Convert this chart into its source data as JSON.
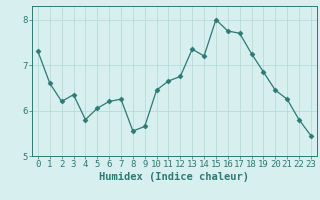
{
  "x": [
    0,
    1,
    2,
    3,
    4,
    5,
    6,
    7,
    8,
    9,
    10,
    11,
    12,
    13,
    14,
    15,
    16,
    17,
    18,
    19,
    20,
    21,
    22,
    23
  ],
  "y": [
    7.3,
    6.6,
    6.2,
    6.35,
    5.8,
    6.05,
    6.2,
    6.25,
    5.55,
    5.65,
    6.45,
    6.65,
    6.75,
    7.35,
    7.2,
    8.0,
    7.75,
    7.7,
    7.25,
    6.85,
    6.45,
    6.25,
    5.8,
    5.45
  ],
  "line_color": "#2d7a72",
  "marker": "D",
  "marker_size": 2.5,
  "bg_color": "#d8efef",
  "grid_color": "#b0d8d8",
  "xlabel": "Humidex (Indice chaleur)",
  "ylim": [
    5,
    8.3
  ],
  "yticks": [
    5,
    6,
    7,
    8
  ],
  "xtick_labels": [
    "0",
    "1",
    "2",
    "3",
    "4",
    "5",
    "6",
    "7",
    "8",
    "9",
    "10",
    "11",
    "12",
    "13",
    "14",
    "15",
    "16",
    "17",
    "18",
    "19",
    "20",
    "21",
    "22",
    "23"
  ],
  "xlabel_fontsize": 7.5,
  "tick_fontsize": 6.5,
  "linewidth": 0.9
}
